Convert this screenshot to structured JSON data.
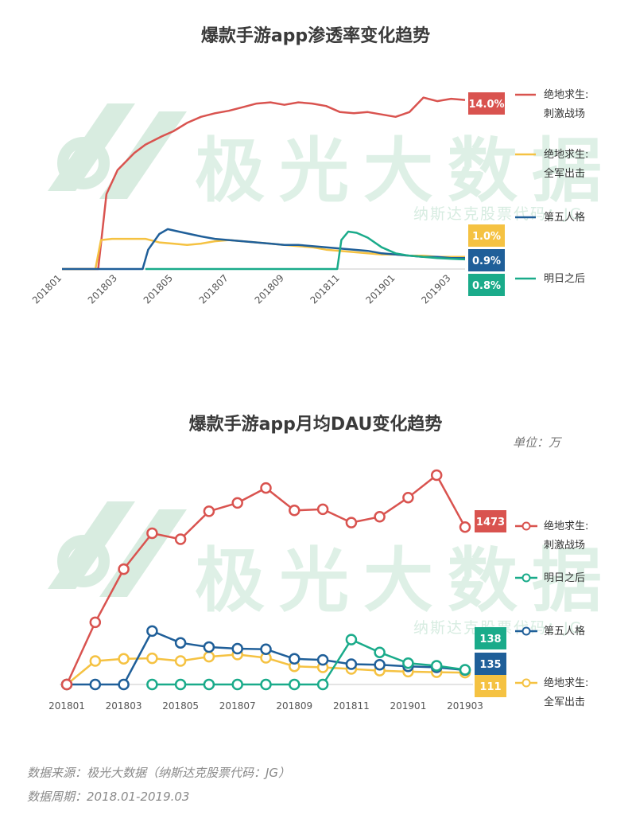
{
  "chart_data": [
    {
      "type": "line",
      "title": "爆款手游app渗透率变化趋势",
      "x_ticks": [
        "201801",
        "201803",
        "201805",
        "201807",
        "201809",
        "201811",
        "201901",
        "201903"
      ],
      "series": [
        {
          "name": "绝地求生:刺激战场",
          "legend": [
            "绝地求生:",
            "刺激战场"
          ],
          "color": "#d9534f",
          "end_label": "14.0%",
          "months": [
            0,
            1.3,
            1.6,
            2,
            2.6,
            3,
            3.6,
            4,
            4.5,
            5,
            5.5,
            6,
            6.5,
            7,
            7.5,
            8,
            8.5,
            9,
            9.5,
            10,
            10.5,
            11,
            11.5,
            12,
            12.5,
            13,
            13.5,
            14,
            14.5
          ],
          "values": [
            0,
            0,
            6.2,
            8.2,
            9.6,
            10.3,
            11.0,
            11.4,
            12.1,
            12.6,
            12.9,
            13.1,
            13.4,
            13.7,
            13.8,
            13.6,
            13.8,
            13.7,
            13.5,
            13.0,
            12.9,
            13.0,
            12.8,
            12.6,
            13.0,
            14.2,
            13.9,
            14.1,
            14.0
          ]
        },
        {
          "name": "绝地求生:全军出击",
          "legend": [
            "绝地求生:",
            "全军出击"
          ],
          "color": "#f5c242",
          "end_label": "1.0%",
          "months": [
            0,
            1.2,
            1.4,
            1.8,
            2.5,
            3,
            3.5,
            4,
            4.5,
            5,
            5.5,
            6,
            6.5,
            7,
            7.5,
            8,
            8.5,
            9,
            9.5,
            10,
            10.5,
            11,
            11.5,
            12,
            12.5,
            13,
            13.5,
            14,
            14.5
          ],
          "values": [
            0,
            0,
            2.4,
            2.5,
            2.5,
            2.5,
            2.2,
            2.1,
            2.0,
            2.1,
            2.3,
            2.4,
            2.3,
            2.2,
            2.1,
            2.0,
            1.9,
            1.8,
            1.6,
            1.5,
            1.4,
            1.3,
            1.2,
            1.2,
            1.1,
            1.1,
            1.0,
            1.0,
            1.0
          ]
        },
        {
          "name": "第五人格",
          "legend": [
            "第五人格"
          ],
          "color": "#1f5f99",
          "end_label": "0.9%",
          "months": [
            0,
            2.9,
            3.1,
            3.5,
            3.8,
            4.2,
            4.6,
            5,
            5.5,
            6,
            6.5,
            7,
            7.5,
            8,
            8.5,
            9,
            9.5,
            10,
            10.5,
            11,
            11.5,
            12,
            12.5,
            13,
            13.5,
            14,
            14.5
          ],
          "values": [
            0,
            0,
            1.6,
            2.9,
            3.3,
            3.1,
            2.9,
            2.7,
            2.5,
            2.4,
            2.3,
            2.2,
            2.1,
            2.0,
            2.0,
            1.9,
            1.8,
            1.7,
            1.6,
            1.5,
            1.3,
            1.2,
            1.1,
            1.0,
            1.0,
            0.9,
            0.9
          ]
        },
        {
          "name": "明日之后",
          "legend": [
            "明日之后"
          ],
          "color": "#1aab8a",
          "end_label": "0.8%",
          "months": [
            3,
            9.9,
            10.05,
            10.3,
            10.6,
            11,
            11.5,
            12,
            12.5,
            13,
            13.5,
            14,
            14.5
          ],
          "values": [
            0,
            0,
            2.4,
            3.1,
            3.0,
            2.6,
            1.8,
            1.3,
            1.1,
            1.0,
            0.9,
            0.85,
            0.8
          ]
        }
      ]
    },
    {
      "type": "line",
      "title": "爆款手游app月均DAU变化趋势",
      "unit": "单位：万",
      "x_ticks": [
        "201801",
        "201803",
        "201805",
        "201807",
        "201809",
        "201811",
        "201901",
        "201903"
      ],
      "series": [
        {
          "name": "绝地求生:刺激战场",
          "legend": [
            "绝地求生:",
            "刺激战场"
          ],
          "color": "#d9534f",
          "end_label": "1473",
          "values": [
            0,
            582,
            1080,
            1416,
            1360,
            1622,
            1700,
            1840,
            1630,
            1640,
            1516,
            1570,
            1750,
            1960,
            1473
          ]
        },
        {
          "name": "明日之后",
          "legend": [
            "明日之后"
          ],
          "color": "#1aab8a",
          "end_label": "138",
          "values": [
            null,
            null,
            null,
            0,
            0,
            0,
            0,
            0,
            0,
            0,
            420,
            300,
            200,
            175,
            138
          ]
        },
        {
          "name": "第五人格",
          "legend": [
            "第五人格"
          ],
          "color": "#1f5f99",
          "end_label": "135",
          "values": [
            0,
            0,
            0,
            500,
            390,
            350,
            335,
            330,
            240,
            230,
            190,
            185,
            170,
            160,
            135
          ]
        },
        {
          "name": "绝地求生:全军出击",
          "legend": [
            "绝地求生:",
            "全军出击"
          ],
          "color": "#f5c242",
          "end_label": "111",
          "values": [
            0,
            220,
            240,
            245,
            220,
            260,
            280,
            250,
            170,
            160,
            145,
            130,
            120,
            115,
            111
          ]
        }
      ]
    }
  ],
  "watermark": {
    "brand": "极光大数据",
    "sub": "纳斯达克股票代码：JG"
  },
  "footer": {
    "source": "数据来源：极光大数据（纳斯达克股票代码：JG）",
    "period": "数据周期：2018.01-2019.03"
  }
}
